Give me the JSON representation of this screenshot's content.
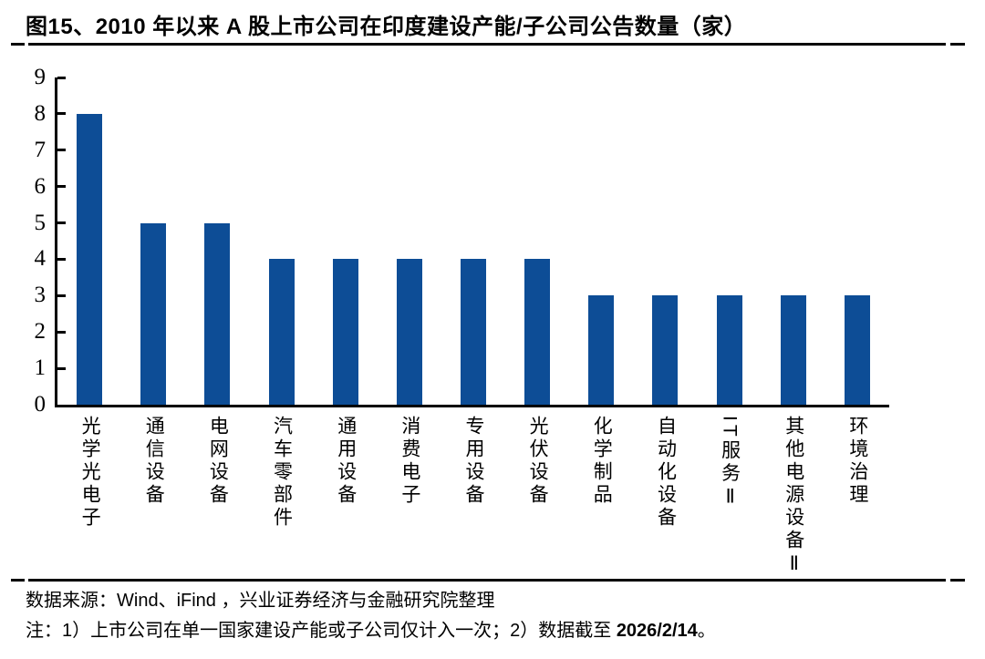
{
  "title": "图15、2010 年以来 A 股上市公司在印度建设产能/子公司公告数量（家）",
  "chart_data": {
    "type": "bar",
    "title": "2010 年以来 A 股上市公司在印度建设产能/子公司公告数量（家）",
    "categories": [
      "光学光电子",
      "通信设备",
      "电网设备",
      "汽车零部件",
      "通用设备",
      "消费电子",
      "专用设备",
      "光伏设备",
      "化学制品",
      "自动化设备",
      "IT服务Ⅱ",
      "其他电源设备Ⅱ",
      "环境治理"
    ],
    "values": [
      8,
      5,
      5,
      4,
      4,
      4,
      4,
      4,
      3,
      3,
      3,
      3,
      3
    ],
    "xlabel": "",
    "ylabel": "",
    "ylim": [
      0,
      9
    ],
    "yticks": [
      0,
      1,
      2,
      3,
      4,
      5,
      6,
      7,
      8,
      9
    ],
    "grid": false,
    "legend_position": "none",
    "bar_color": "#0D4D96",
    "axis_color": "#000000"
  },
  "footer": {
    "source": "数据来源：Wind、iFind ，兴业证券经济与金融研究院整理",
    "note_prefix": "注：1）上市公司在单一国家建设产能或子公司仅计入一次；2）数据截至 ",
    "note_date": "2026/2/14",
    "note_suffix": "。"
  }
}
